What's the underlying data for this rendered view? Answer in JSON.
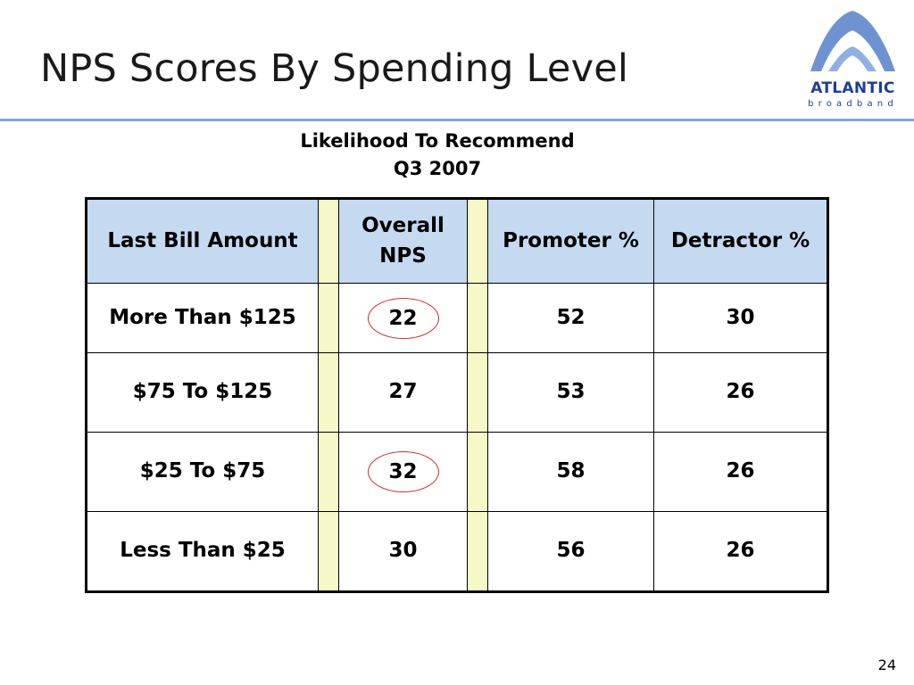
{
  "slide": {
    "title": "NPS Scores By Spending Level",
    "subtitle_line1": "Likelihood To Recommend",
    "subtitle_line2": "Q3 2007",
    "page_number": "24"
  },
  "logo": {
    "word": "ATLANTIC",
    "sub": "broadband",
    "colors": {
      "primary": "#1f3f8f",
      "arch": "#6f93d1"
    }
  },
  "table": {
    "headers": {
      "col1": "Last Bill Amount",
      "col2": "Overall NPS",
      "col3": "Promoter %",
      "col4": "Detractor %"
    },
    "rows": [
      {
        "amount": "More Than $125",
        "nps": "22",
        "promoter": "52",
        "detractor": "30",
        "circled": true
      },
      {
        "amount": "$75 To $125",
        "nps": "27",
        "promoter": "53",
        "detractor": "26",
        "circled": false
      },
      {
        "amount": "$25 To $75",
        "nps": "32",
        "promoter": "58",
        "detractor": "26",
        "circled": true
      },
      {
        "amount": "Less Than $25",
        "nps": "30",
        "promoter": "56",
        "detractor": "26",
        "circled": false
      }
    ],
    "colors": {
      "header_bg": "#c5d9f1",
      "spacer_bg": "#f7f8c8",
      "circle": "#cf2a2a",
      "rule": "#7ea6d6"
    }
  }
}
